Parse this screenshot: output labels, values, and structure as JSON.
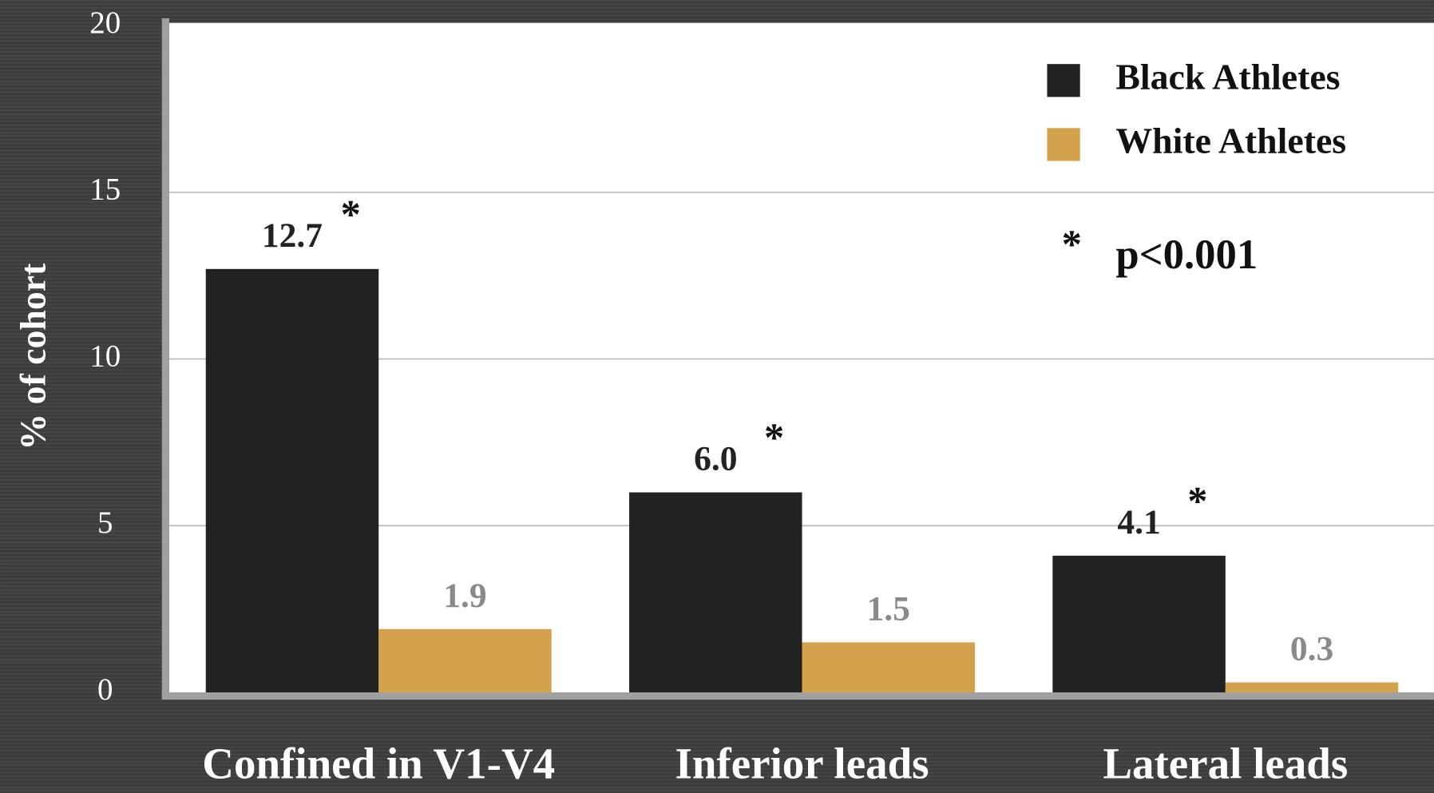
{
  "chart_data": {
    "type": "bar",
    "y_label": "% of cohort",
    "categories": [
      "Confined in V1-V4",
      "Inferior leads",
      "Lateral leads"
    ],
    "series": [
      {
        "name": "Black Athletes",
        "color": "#222222",
        "values": [
          12.7,
          6.0,
          4.1
        ],
        "value_labels": [
          "12.7",
          "6.0",
          "4.1"
        ]
      },
      {
        "name": "White Athletes",
        "color": "#d4a24c",
        "values": [
          1.9,
          1.5,
          0.3
        ],
        "value_labels": [
          "1.9",
          "1.5",
          "0.3"
        ]
      }
    ],
    "significance_marker": "*",
    "significance_note": "p<0.001",
    "ylim": [
      0,
      20
    ],
    "yticks": [
      0,
      5,
      10,
      15,
      20
    ],
    "grid": true,
    "legend": "upper right"
  }
}
